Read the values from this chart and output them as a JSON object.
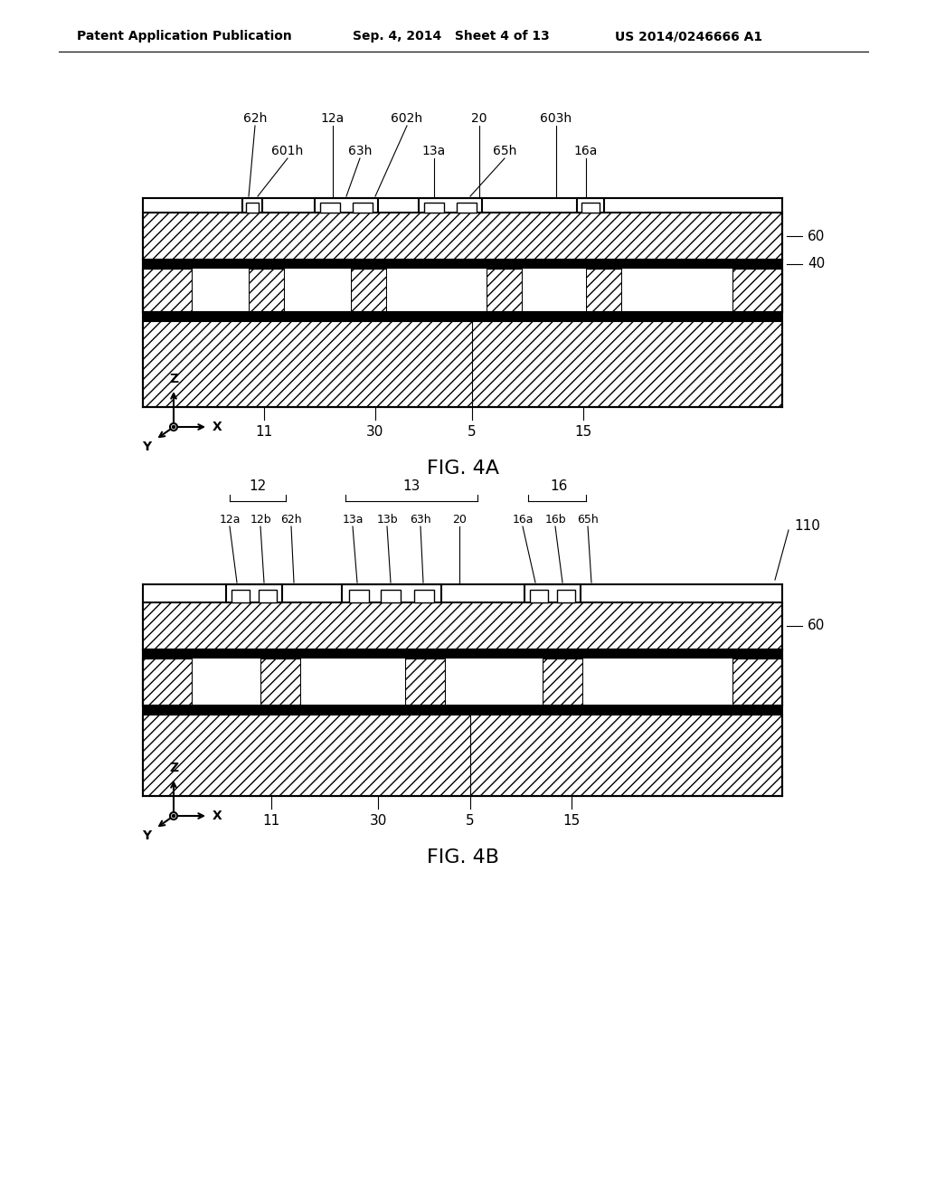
{
  "bg_color": "#ffffff",
  "header_left": "Patent Application Publication",
  "header_mid": "Sep. 4, 2014   Sheet 4 of 13",
  "header_right": "US 2014/0246666 A1",
  "fig4a_label": "FIG. 4A",
  "fig4b_label": "FIG. 4B",
  "font_color": "#000000"
}
